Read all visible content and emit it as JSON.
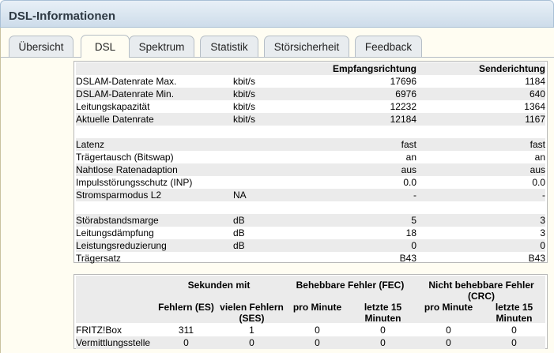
{
  "header": {
    "title": "DSL-Informationen"
  },
  "tabs": [
    {
      "label": "Übersicht",
      "active": false
    },
    {
      "label": "DSL",
      "active": true
    },
    {
      "label": "Spektrum",
      "active": false
    },
    {
      "label": "Statistik",
      "active": false
    },
    {
      "label": "Störsicherheit",
      "active": false
    },
    {
      "label": "Feedback",
      "active": false
    }
  ],
  "main_table": {
    "col_down": "Empfangsrichtung",
    "col_up": "Senderichtung",
    "rows": [
      {
        "label": "DSLAM-Datenrate Max.",
        "unit": "kbit/s",
        "down": "17696",
        "up": "1184"
      },
      {
        "label": "DSLAM-Datenrate Min.",
        "unit": "kbit/s",
        "down": "6976",
        "up": "640"
      },
      {
        "label": "Leitungskapazität",
        "unit": "kbit/s",
        "down": "12232",
        "up": "1364"
      },
      {
        "label": "Aktuelle Datenrate",
        "unit": "kbit/s",
        "down": "12184",
        "up": "1167"
      },
      {
        "label": "Latenz",
        "unit": "",
        "down": "fast",
        "up": "fast"
      },
      {
        "label": "Trägertausch (Bitswap)",
        "unit": "",
        "down": "an",
        "up": "an"
      },
      {
        "label": "Nahtlose Ratenadaption",
        "unit": "",
        "down": "aus",
        "up": "aus"
      },
      {
        "label": "Impulsstörungsschutz (INP)",
        "unit": "",
        "down": "0.0",
        "up": "0.0"
      },
      {
        "label": "Stromsparmodus L2",
        "unit": "NA",
        "down": "-",
        "up": "-"
      },
      {
        "label": "Störabstandsmarge",
        "unit": "dB",
        "down": "5",
        "up": "3"
      },
      {
        "label": "Leitungsdämpfung",
        "unit": "dB",
        "down": "18",
        "up": "3"
      },
      {
        "label": "Leistungsreduzierung",
        "unit": "dB",
        "down": "0",
        "up": "0"
      },
      {
        "label": "Trägersatz",
        "unit": "",
        "down": "B43",
        "up": "B43"
      }
    ]
  },
  "error_table": {
    "group_seconds": "Sekunden mit",
    "group_fec": "Behebbare Fehler (FEC)",
    "group_crc": "Nicht behebbare Fehler (CRC)",
    "sub_es": "Fehlern (ES)",
    "sub_ses": "vielen Fehlern (SES)",
    "sub_pro": "pro Minute",
    "sub_15": "letzte 15 Minuten",
    "rows": [
      {
        "label": "FRITZ!Box",
        "es": "311",
        "ses": "1",
        "fec_min": "0",
        "fec_15": "0",
        "crc_min": "0",
        "crc_15": "0"
      },
      {
        "label": "Vermittlungsstelle",
        "es": "0",
        "ses": "0",
        "fec_min": "0",
        "fec_15": "0",
        "crc_min": "0",
        "crc_15": "0"
      }
    ]
  }
}
